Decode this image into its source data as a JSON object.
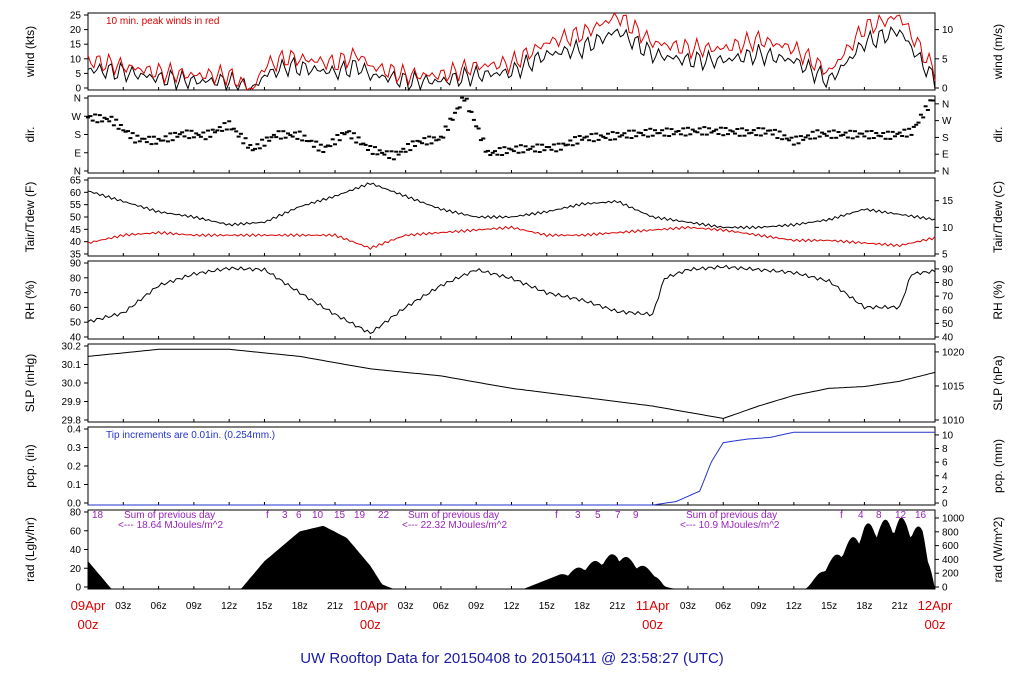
{
  "footer": {
    "prefix": "UW Rooftop Data for",
    "start": "20150408",
    "to": "to",
    "end": "20150411",
    "at": "@",
    "time": "23:58:27",
    "tz": "(UTC)"
  },
  "colors": {
    "axis": "#000000",
    "red": "#dd0000",
    "blue": "#2233cc",
    "purple": "#9922bb",
    "footer": "#1a1aa6"
  },
  "chart_data": [
    {
      "type": "line",
      "id": "wind",
      "ylabel_left": "wind (kts)",
      "ylabel_right": "wind (m/s)",
      "left_ticks": [
        "0",
        "5",
        "10",
        "15",
        "20",
        "25"
      ],
      "right_ticks": [
        "0",
        "5",
        "10"
      ],
      "annotation": "10 min. peak winds in red",
      "ylim": [
        0,
        26
      ],
      "x_hours": [
        0,
        3,
        6,
        9,
        12,
        14,
        15,
        17,
        19,
        21,
        23,
        24,
        26,
        27,
        30,
        33,
        36,
        39,
        42,
        45,
        48,
        51,
        54,
        57,
        60,
        63,
        66,
        69,
        72
      ],
      "series": [
        {
          "color": "black",
          "values": [
            7,
            6,
            4,
            3,
            3,
            0,
            5,
            8,
            7,
            6,
            8,
            5,
            4,
            3,
            3,
            5,
            6,
            12,
            14,
            20,
            12,
            10,
            10,
            12,
            10,
            3,
            16,
            20,
            3
          ]
        },
        {
          "color": "red",
          "values": [
            10,
            8,
            6,
            5,
            5,
            0,
            8,
            11,
            10,
            9,
            12,
            8,
            6,
            5,
            5,
            8,
            9,
            16,
            19,
            25,
            16,
            14,
            14,
            17,
            14,
            6,
            21,
            25,
            6
          ]
        }
      ]
    },
    {
      "type": "scatter",
      "id": "dir",
      "ylabel_left": "dir.",
      "ylabel_right": "dir.",
      "left_ticks": [
        "N",
        "E",
        "S",
        "W",
        "N"
      ],
      "right_ticks": [
        "N",
        "E",
        "S",
        "W",
        "N"
      ],
      "ylim": [
        0,
        360
      ],
      "x_hours": [
        0,
        2,
        4,
        6,
        8,
        10,
        12,
        14,
        16,
        18,
        20,
        22,
        24,
        26,
        28,
        30,
        32,
        34,
        36,
        38,
        40,
        42,
        44,
        46,
        48,
        50,
        52,
        54,
        56,
        58,
        60,
        62,
        64,
        66,
        68,
        70,
        72
      ],
      "values": [
        260,
        255,
        170,
        160,
        190,
        175,
        220,
        100,
        170,
        170,
        110,
        200,
        120,
        90,
        150,
        160,
        350,
        80,
        100,
        110,
        120,
        170,
        180,
        190,
        195,
        190,
        190,
        185,
        180,
        190,
        150,
        190,
        190,
        190,
        180,
        190,
        355
      ]
    },
    {
      "type": "line",
      "id": "temp",
      "ylabel_left": "Tair/Tdew (F)",
      "ylabel_right": "Tair/Tdew (C)",
      "left_ticks": [
        "35",
        "40",
        "45",
        "50",
        "55",
        "60",
        "65"
      ],
      "right_ticks": [
        "5",
        "10",
        "15"
      ],
      "ylim": [
        35,
        65
      ],
      "x_hours": [
        0,
        3,
        6,
        9,
        12,
        15,
        18,
        21,
        24,
        27,
        30,
        33,
        36,
        39,
        42,
        45,
        48,
        51,
        54,
        57,
        60,
        63,
        66,
        69,
        72
      ],
      "series": [
        {
          "name": "Tair",
          "color": "black",
          "values": [
            60,
            56,
            52,
            50,
            47,
            48,
            54,
            58,
            63,
            58,
            53,
            50,
            50,
            52,
            55,
            56,
            50,
            48,
            46,
            46,
            47,
            49,
            53,
            51,
            49
          ]
        },
        {
          "name": "Tdew",
          "color": "red",
          "values": [
            40,
            43,
            44,
            43,
            43,
            43,
            43,
            43,
            38,
            43,
            44,
            45,
            46,
            43,
            43,
            44,
            45,
            46,
            45,
            43,
            41,
            41,
            40,
            39,
            42
          ]
        }
      ]
    },
    {
      "type": "line",
      "id": "rh",
      "ylabel_left": "RH (%)",
      "ylabel_right": "RH (%)",
      "left_ticks": [
        "40",
        "50",
        "60",
        "70",
        "80",
        "90"
      ],
      "right_ticks": [
        "40",
        "50",
        "60",
        "70",
        "80",
        "90"
      ],
      "ylim": [
        38,
        92
      ],
      "x_hours": [
        0,
        3,
        6,
        9,
        12,
        15,
        18,
        21,
        24,
        27,
        30,
        33,
        36,
        39,
        42,
        45,
        48,
        49,
        51,
        54,
        57,
        60,
        63,
        66,
        69,
        70,
        72
      ],
      "series": [
        {
          "name": "RH",
          "color": "black",
          "values": [
            50,
            56,
            75,
            83,
            87,
            86,
            70,
            55,
            42,
            60,
            75,
            86,
            80,
            70,
            65,
            57,
            55,
            80,
            86,
            88,
            86,
            84,
            78,
            60,
            60,
            83,
            85
          ]
        }
      ]
    },
    {
      "type": "line",
      "id": "slp",
      "ylabel_left": "SLP (inHg)",
      "ylabel_right": "SLP (hPa)",
      "left_ticks": [
        "29.8",
        "29.9",
        "30.0",
        "30.1",
        "30.2"
      ],
      "right_ticks": [
        "1010",
        "1015",
        "1020"
      ],
      "ylim": [
        29.78,
        30.22
      ],
      "x_hours": [
        0,
        6,
        12,
        18,
        24,
        30,
        36,
        42,
        48,
        54,
        57,
        60,
        63,
        66,
        69,
        72
      ],
      "series": [
        {
          "name": "SLP",
          "color": "black",
          "values": [
            30.15,
            30.19,
            30.19,
            30.15,
            30.08,
            30.04,
            29.97,
            29.92,
            29.87,
            29.8,
            29.87,
            29.93,
            29.97,
            29.98,
            30.01,
            30.06
          ]
        }
      ]
    },
    {
      "type": "line",
      "id": "pcp",
      "ylabel_left": "pcp. (in)",
      "ylabel_right": "pcp. (mm)",
      "left_ticks": [
        "0.0",
        "0.1",
        "0.2",
        "0.3",
        "0.4"
      ],
      "right_ticks": [
        "0",
        "2",
        "4",
        "6",
        "8",
        "10"
      ],
      "annotation": "Tip increments are 0.01in. (0.254mm.)",
      "ylim": [
        0,
        0.45
      ],
      "x_hours": [
        0,
        48,
        50,
        52,
        53,
        54,
        56,
        58,
        60,
        72
      ],
      "series": [
        {
          "name": "pcp",
          "color": "blue",
          "values": [
            0,
            0,
            0.02,
            0.08,
            0.25,
            0.36,
            0.38,
            0.39,
            0.42,
            0.42
          ]
        }
      ]
    },
    {
      "type": "area",
      "id": "rad",
      "ylabel_left": "rad (Lgly/hr)",
      "ylabel_right": "rad (W/m^2)",
      "left_ticks": [
        "0",
        "20",
        "40",
        "60",
        "80"
      ],
      "right_ticks": [
        "0",
        "200",
        "400",
        "600",
        "800",
        "1000"
      ],
      "ylim": [
        0,
        85
      ],
      "x_hours": [
        0,
        1,
        2,
        13,
        15,
        18,
        20,
        22,
        24,
        25,
        26,
        37,
        39,
        42,
        45,
        48,
        49,
        50,
        61,
        63,
        66,
        69,
        71,
        72
      ],
      "values": [
        30,
        15,
        0,
        0,
        30,
        62,
        68,
        55,
        25,
        5,
        0,
        0,
        10,
        25,
        40,
        20,
        3,
        0,
        0,
        30,
        70,
        78,
        65,
        0
      ],
      "annotations": {
        "start_label": "18",
        "hour_marks": [
          "f",
          "3",
          "6",
          "10",
          "15",
          "19",
          "22",
          "f",
          "3",
          "5",
          "7",
          "9",
          "f",
          "4",
          "8",
          "12",
          "16"
        ],
        "day_notes": [
          {
            "line1": "Sum of previous day",
            "line2": "<--- 18.64 MJoules/m^2"
          },
          {
            "line1": "Sum of previous day",
            "line2": "<--- 22.32 MJoules/m^2"
          },
          {
            "line1": "Sum of previous day",
            "line2": "<--- 10.9 MJoules/m^2"
          }
        ]
      }
    }
  ],
  "x_axis": {
    "range_hours": [
      0,
      72
    ],
    "ticks": [
      "09Apr",
      "03z",
      "06z",
      "09z",
      "12z",
      "15z",
      "18z",
      "21z",
      "10Apr",
      "03z",
      "06z",
      "09z",
      "12z",
      "15z",
      "18z",
      "21z",
      "11Apr",
      "03z",
      "06z",
      "09z",
      "12z",
      "15z",
      "18z",
      "21z",
      "12Apr"
    ],
    "day_labels": [
      "09Apr",
      "10Apr",
      "11Apr",
      "12Apr"
    ],
    "day_sub": "00z"
  }
}
